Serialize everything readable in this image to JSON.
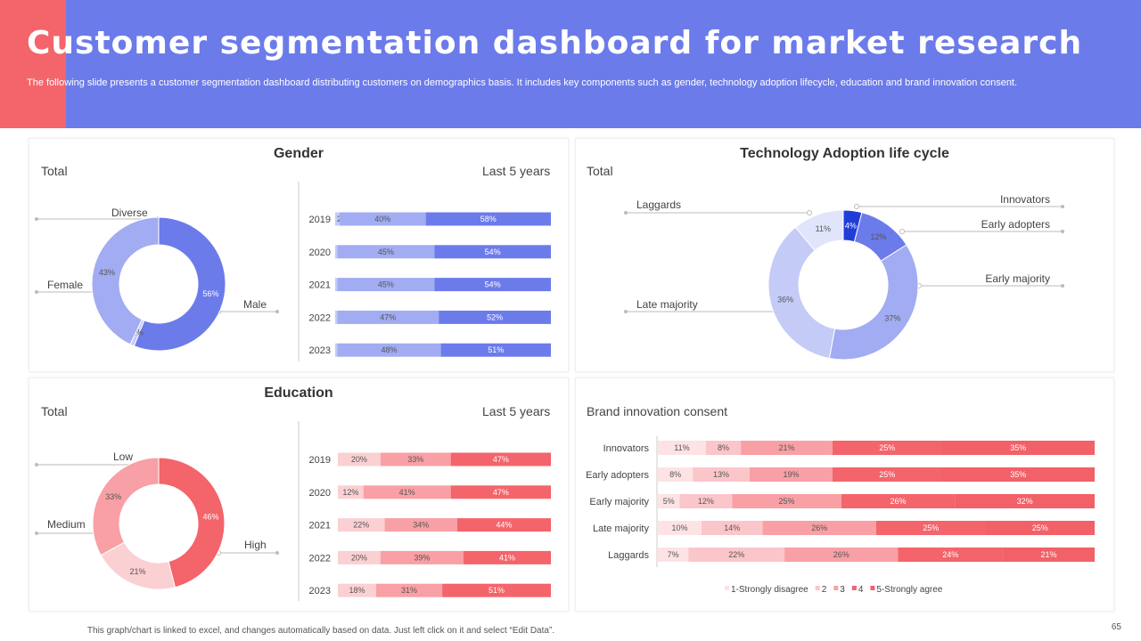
{
  "header": {
    "title": "Customer segmentation dashboard for market research",
    "subtitle": "The following slide presents a customer segmentation dashboard distributing customers on demographics basis. It includes key components such as gender, technology adoption lifecycle, education and brand innovation consent."
  },
  "footer": {
    "note": "This graph/chart is linked to excel, and changes automatically based on data. Just left click on it and select “Edit Data”.",
    "page": "65"
  },
  "colors": {
    "header": "#6c7bea",
    "accent": "#f4646b"
  },
  "gender": {
    "title": "Gender",
    "total_label": "Total",
    "period_label": "Last 5 years"
  },
  "education": {
    "title": "Education",
    "total_label": "Total",
    "period_label": "Last 5 years"
  },
  "tech": {
    "title": "Technology Adoption life cycle",
    "total_label": "Total"
  },
  "brand": {
    "title": "Brand innovation consent"
  },
  "chart_data": [
    {
      "id": "gender_donut",
      "type": "pie",
      "title": "Gender",
      "categories": [
        "Male",
        "Diverse",
        "Female"
      ],
      "values": [
        56,
        1,
        43
      ],
      "labels": [
        "56%",
        "1%",
        "43%"
      ],
      "colors": [
        "#6c7bea",
        "#c4cbf7",
        "#a1acf2"
      ]
    },
    {
      "id": "gender_bars",
      "type": "bar",
      "orientation": "horizontal",
      "stacked": true,
      "categories": [
        "2019",
        "2020",
        "2021",
        "2022",
        "2023"
      ],
      "series": [
        {
          "values": [
            2,
            1,
            1,
            1,
            1
          ],
          "labels": [
            "2%",
            "1%",
            "1%",
            "1%",
            "1%"
          ],
          "color": "#c4cbf7"
        },
        {
          "values": [
            40,
            45,
            45,
            47,
            48
          ],
          "labels": [
            "40%",
            "45%",
            "45%",
            "47%",
            "48%"
          ],
          "color": "#a1acf2"
        },
        {
          "values": [
            58,
            54,
            54,
            52,
            51
          ],
          "labels": [
            "58%",
            "54%",
            "54%",
            "52%",
            "51%"
          ],
          "color": "#6c7bea"
        }
      ]
    },
    {
      "id": "tech_donut",
      "type": "pie",
      "title": "Technology Adoption life cycle",
      "categories": [
        "Innovators",
        "Early adopters",
        "Early majority",
        "Late majority",
        "Laggards"
      ],
      "values": [
        4,
        12,
        37,
        36,
        11
      ],
      "labels": [
        "4%",
        "12%",
        "37%",
        "36%",
        "11%"
      ],
      "colors": [
        "#1f3ed8",
        "#6c7bea",
        "#a1acf2",
        "#c4cbf7",
        "#e1e5fb"
      ]
    },
    {
      "id": "education_donut",
      "type": "pie",
      "title": "Education",
      "categories": [
        "High",
        "Low",
        "Medium"
      ],
      "values": [
        46,
        21,
        33
      ],
      "labels": [
        "46%",
        "21%",
        "33%"
      ],
      "colors": [
        "#f4646b",
        "#fbd0d3",
        "#f8a0a5"
      ]
    },
    {
      "id": "education_bars",
      "type": "bar",
      "orientation": "horizontal",
      "stacked": true,
      "categories": [
        "2019",
        "2020",
        "2021",
        "2022",
        "2023"
      ],
      "series": [
        {
          "values": [
            20,
            12,
            22,
            20,
            18
          ],
          "labels": [
            "20%",
            "12%",
            "22%",
            "20%",
            "18%"
          ],
          "color": "#fbd0d3"
        },
        {
          "values": [
            33,
            41,
            34,
            39,
            31
          ],
          "labels": [
            "33%",
            "41%",
            "34%",
            "39%",
            "31%"
          ],
          "color": "#f8a0a5"
        },
        {
          "values": [
            47,
            47,
            44,
            41,
            51
          ],
          "labels": [
            "47%",
            "47%",
            "44%",
            "41%",
            "51%"
          ],
          "color": "#f4646b"
        }
      ]
    },
    {
      "id": "brand_bars",
      "type": "bar",
      "orientation": "horizontal",
      "stacked": true,
      "title": "Brand innovation consent",
      "categories": [
        "Innovators",
        "Early adopters",
        "Early majority",
        "Late majority",
        "Laggards"
      ],
      "series": [
        {
          "name": "1-Strongly disagree",
          "values": [
            11,
            8,
            5,
            10,
            7
          ],
          "labels": [
            "11%",
            "8%",
            "5%",
            "10%",
            "7%"
          ],
          "color": "#fde3e4"
        },
        {
          "name": "2",
          "values": [
            8,
            13,
            12,
            14,
            22
          ],
          "labels": [
            "8%",
            "13%",
            "12%",
            "14%",
            "22%"
          ],
          "color": "#fbc6c9"
        },
        {
          "name": "3",
          "values": [
            21,
            19,
            25,
            26,
            26
          ],
          "labels": [
            "21%",
            "19%",
            "25%",
            "26%",
            "26%"
          ],
          "color": "#f8a0a5"
        },
        {
          "name": "4",
          "values": [
            25,
            25,
            26,
            25,
            24
          ],
          "labels": [
            "25%",
            "25%",
            "26%",
            "25%",
            "24%"
          ],
          "color": "#f4646b"
        },
        {
          "name": "5-Strongly agree",
          "values": [
            35,
            35,
            32,
            25,
            21
          ],
          "labels": [
            "35%",
            "35%",
            "32%",
            "25%",
            "21%"
          ],
          "color": "#f26068"
        }
      ],
      "legend": "bottom"
    }
  ]
}
